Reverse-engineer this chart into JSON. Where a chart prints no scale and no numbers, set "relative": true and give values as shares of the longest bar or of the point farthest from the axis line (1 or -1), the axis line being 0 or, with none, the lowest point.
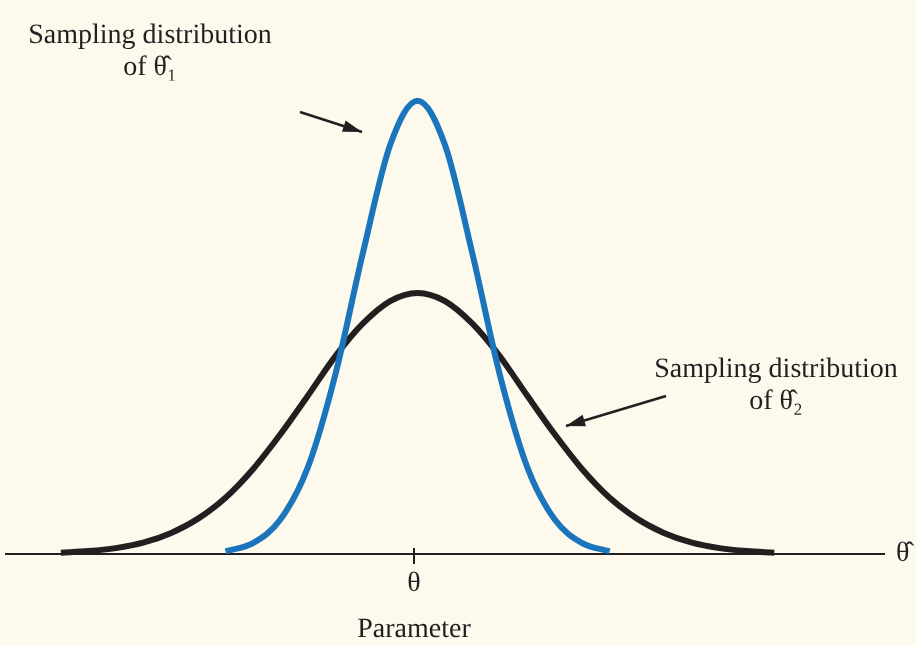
{
  "chart_data": {
    "type": "line",
    "relative": true,
    "xlabel": "θ̂",
    "legend": false,
    "grid": false,
    "categories": [
      null,
      null,
      null,
      null,
      null,
      null,
      null,
      null,
      null,
      null,
      null,
      null,
      null,
      null,
      null,
      null,
      null,
      null,
      null,
      null,
      null,
      null,
      null,
      null,
      null,
      null,
      null,
      null,
      null,
      null,
      null,
      null,
      null
    ],
    "series": [
      {
        "color": "#1b75bc",
        "values": [
          null,
          null,
          null,
          null,
          null,
          null,
          null,
          null,
          0.006,
          0.024,
          0.076,
          0.191,
          0.395,
          0.662,
          0.902,
          1,
          0.902,
          0.662,
          0.395,
          0.191,
          0.076,
          0.024,
          0.006,
          null,
          null,
          null,
          null,
          null,
          null,
          null,
          null,
          null,
          null
        ]
      },
      {
        "color": "#231f20",
        "values": [
          null,
          null,
          0.003,
          0.0064,
          0.013,
          0.025,
          0.046,
          0.078,
          0.124,
          0.187,
          0.264,
          0.349,
          0.436,
          0.508,
          0.558,
          0.576,
          0.558,
          0.508,
          0.436,
          0.349,
          0.264,
          0.187,
          0.124,
          0.078,
          0.046,
          0.025,
          0.013,
          0.0064,
          0.003,
          null,
          null,
          null,
          null
        ]
      }
    ],
    "annotations": [
      "Sampling distribution\nof θ̂₁",
      "Sampling distribution\nof θ̂₂",
      "θ",
      "Parameter"
    ]
  }
}
